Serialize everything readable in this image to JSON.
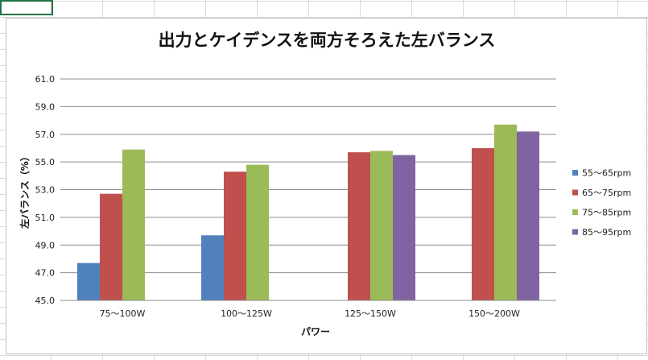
{
  "chart_data": {
    "type": "bar",
    "title": "出力とケイデンスを両方そろえた左バランス",
    "xlabel": "パワー",
    "ylabel": "左バランス（%）",
    "categories": [
      "75～100W",
      "100～125W",
      "125～150W",
      "150～200W"
    ],
    "ylim": [
      45.0,
      61.0
    ],
    "yticks": [
      "45.0",
      "47.0",
      "49.0",
      "51.0",
      "53.0",
      "55.0",
      "57.0",
      "59.0",
      "61.0"
    ],
    "grid": true,
    "legend_position": "right",
    "series": [
      {
        "name": "55～65rpm",
        "color": "#4f81bd",
        "values": [
          47.7,
          49.7,
          null,
          null
        ]
      },
      {
        "name": "65～75rpm",
        "color": "#c0504d",
        "values": [
          52.7,
          54.3,
          55.7,
          56.0
        ]
      },
      {
        "name": "75～85rpm",
        "color": "#9bbb59",
        "values": [
          55.9,
          54.8,
          55.8,
          57.7
        ]
      },
      {
        "name": "85～95rpm",
        "color": "#8064a2",
        "values": [
          null,
          null,
          55.5,
          57.2
        ]
      }
    ]
  }
}
